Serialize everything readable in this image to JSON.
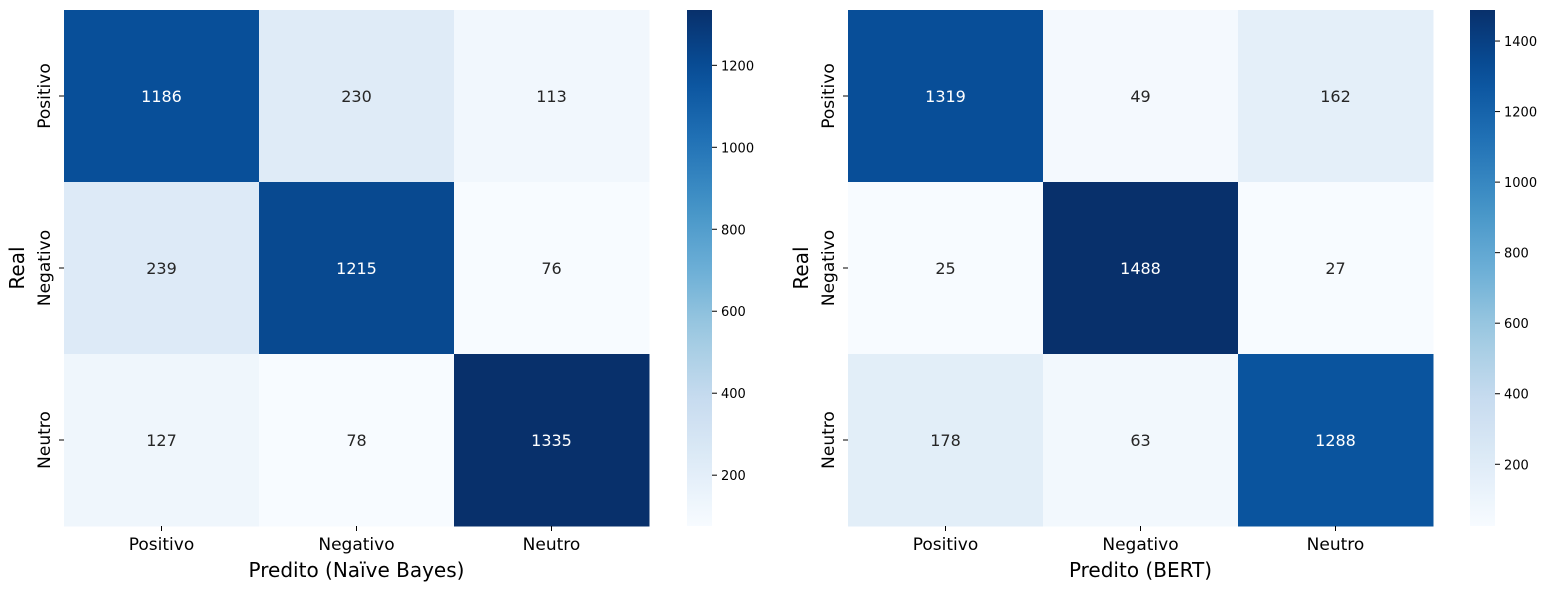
{
  "chart_data": [
    {
      "type": "heatmap",
      "title": "",
      "xlabel": "Predito (Naïve Bayes)",
      "ylabel": "Real",
      "x_categories": [
        "Positivo",
        "Negativo",
        "Neutro"
      ],
      "y_categories": [
        "Positivo",
        "Negativo",
        "Neutro"
      ],
      "values": [
        [
          1186,
          230,
          113
        ],
        [
          239,
          1215,
          76
        ],
        [
          127,
          78,
          1335
        ]
      ],
      "colormap": "Blues",
      "vmin": 76,
      "vmax": 1335,
      "colorbar_ticks": [
        200,
        400,
        600,
        800,
        1000,
        1200
      ]
    },
    {
      "type": "heatmap",
      "title": "",
      "xlabel": "Predito (BERT)",
      "ylabel": "Real",
      "x_categories": [
        "Positivo",
        "Negativo",
        "Neutro"
      ],
      "y_categories": [
        "Positivo",
        "Negativo",
        "Neutro"
      ],
      "values": [
        [
          1319,
          49,
          162
        ],
        [
          25,
          1488,
          27
        ],
        [
          178,
          63,
          1288
        ]
      ],
      "colormap": "Blues",
      "vmin": 25,
      "vmax": 1488,
      "colorbar_ticks": [
        200,
        400,
        600,
        800,
        1000,
        1200,
        1400
      ]
    }
  ]
}
